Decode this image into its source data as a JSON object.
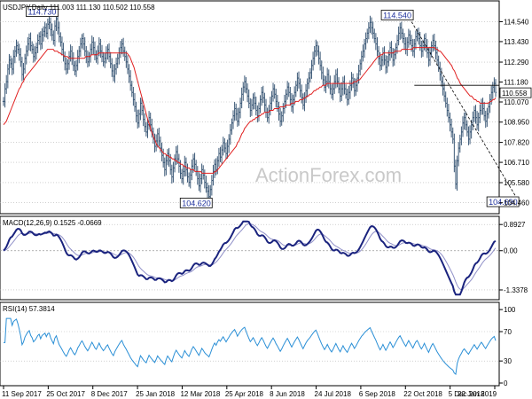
{
  "chart_data": {
    "type": "line",
    "symbol_label": "USDJPY,Daily",
    "ohlc_label": "111.003 111.130 110.502 110.558",
    "watermark": "ActionForex.com",
    "x_labels": [
      "11 Sep 2017",
      "25 Oct 2017",
      "8 Dec 2017",
      "25 Jan 2018",
      "12 Mar 2018",
      "25 Apr 2018",
      "8 Jun 2018",
      "24 Jul 2018",
      "6 Sep 2018",
      "22 Oct 2018",
      "5 Dec 2018",
      "22 Jan 2019"
    ],
    "price": {
      "ylim": [
        104.0,
        115.45
      ],
      "ticks": [
        "114.540",
        "113.430",
        "112.290",
        "111.180",
        "110.070",
        "108.950",
        "107.820",
        "106.710",
        "105.580",
        "104.460"
      ],
      "last_value": "110.558",
      "last_value_y": 110.558,
      "horizontal_line": 111.0,
      "annotations": [
        {
          "label": "114.730",
          "index": 37,
          "value": 114.73
        },
        {
          "label": "104.620",
          "index": 145,
          "value": 104.62
        },
        {
          "label": "114.540",
          "index": 286,
          "value": 114.54
        },
        {
          "label": "104.690",
          "index": 360,
          "value": 104.69
        }
      ],
      "series_close": [
        110.1,
        110.8,
        111.2,
        111.9,
        112.4,
        112.2,
        111.9,
        112.6,
        112.9,
        113.2,
        113.0,
        112.7,
        112.3,
        111.6,
        111.9,
        112.5,
        112.9,
        113.3,
        113.6,
        113.2,
        113.0,
        112.6,
        112.8,
        113.1,
        113.5,
        113.7,
        113.3,
        113.8,
        114.0,
        114.2,
        113.9,
        114.4,
        114.5,
        114.1,
        113.8,
        113.5,
        114.3,
        114.7,
        114.2,
        113.7,
        113.4,
        113.0,
        112.6,
        112.2,
        111.9,
        112.2,
        112.6,
        112.9,
        112.5,
        112.1,
        111.8,
        112.1,
        112.6,
        112.9,
        113.3,
        113.6,
        113.3,
        112.9,
        112.6,
        112.3,
        112.6,
        113.0,
        113.4,
        113.1,
        112.7,
        112.5,
        112.9,
        113.3,
        112.9,
        112.6,
        112.3,
        112.5,
        112.8,
        113.0,
        112.6,
        112.2,
        111.8,
        111.5,
        111.9,
        112.2,
        112.5,
        112.8,
        113.1,
        113.3,
        112.9,
        112.6,
        112.3,
        111.9,
        111.5,
        111.0,
        110.6,
        110.2,
        109.8,
        109.3,
        108.9,
        109.4,
        110.0,
        109.6,
        109.1,
        108.7,
        108.4,
        108.8,
        109.2,
        108.8,
        108.4,
        108.0,
        107.6,
        107.9,
        108.3,
        107.9,
        107.5,
        107.1,
        106.7,
        106.3,
        106.8,
        107.2,
        106.8,
        106.3,
        105.9,
        106.4,
        106.9,
        107.3,
        106.9,
        106.5,
        106.1,
        105.8,
        106.2,
        106.7,
        106.3,
        105.9,
        105.6,
        106.0,
        106.5,
        106.9,
        106.6,
        106.2,
        105.8,
        105.4,
        105.8,
        106.3,
        106.0,
        105.6,
        105.3,
        105.1,
        104.8,
        105.2,
        105.7,
        106.2,
        106.6,
        106.3,
        106.8,
        107.2,
        107.0,
        107.4,
        107.8,
        107.5,
        107.2,
        107.6,
        108.0,
        108.5,
        108.9,
        109.3,
        109.7,
        109.4,
        109.0,
        109.5,
        110.0,
        110.5,
        110.9,
        111.2,
        110.8,
        110.4,
        110.0,
        109.6,
        109.9,
        110.3,
        110.0,
        109.6,
        109.3,
        109.7,
        110.2,
        110.6,
        110.3,
        109.9,
        109.5,
        109.2,
        109.6,
        110.0,
        110.4,
        110.8,
        110.5,
        110.1,
        109.8,
        109.4,
        109.0,
        109.3,
        109.7,
        110.1,
        110.5,
        110.9,
        110.6,
        110.2,
        109.8,
        110.2,
        110.6,
        111.0,
        111.4,
        111.1,
        110.7,
        110.3,
        109.9,
        110.3,
        110.7,
        111.1,
        111.4,
        111.7,
        112.1,
        112.5,
        112.9,
        113.2,
        112.9,
        112.5,
        112.1,
        111.7,
        111.3,
        110.9,
        111.2,
        111.6,
        111.2,
        110.8,
        110.5,
        110.8,
        111.2,
        111.6,
        111.2,
        110.8,
        110.4,
        110.8,
        111.2,
        110.8,
        110.5,
        110.2,
        110.6,
        111.0,
        111.4,
        111.1,
        110.7,
        111.0,
        111.4,
        111.8,
        112.2,
        112.6,
        112.9,
        113.3,
        113.6,
        113.9,
        114.2,
        114.5,
        114.2,
        113.9,
        113.6,
        113.3,
        112.9,
        112.5,
        112.1,
        112.4,
        112.8,
        112.4,
        112.0,
        112.3,
        112.7,
        113.1,
        112.8,
        112.4,
        112.7,
        113.1,
        113.5,
        113.9,
        114.2,
        113.9,
        113.6,
        113.3,
        113.0,
        113.4,
        113.8,
        113.5,
        113.2,
        112.9,
        113.3,
        113.7,
        113.9,
        113.6,
        113.2,
        112.9,
        113.2,
        113.6,
        113.2,
        112.8,
        112.4,
        112.8,
        113.2,
        113.5,
        113.2,
        112.8,
        112.4,
        112.0,
        111.6,
        111.2,
        110.8,
        110.4,
        110.0,
        109.6,
        109.2,
        108.8,
        108.4,
        108.0,
        106.5,
        105.5,
        106.8,
        107.5,
        108.0,
        108.4,
        108.9,
        109.2,
        108.8,
        108.4,
        108.0,
        108.4,
        108.8,
        109.2,
        109.6,
        109.2,
        108.8,
        109.2,
        109.6,
        110.0,
        109.7,
        109.3,
        109.0,
        109.4,
        109.8,
        110.2,
        110.6,
        110.9,
        111.1,
        110.6
      ],
      "ma": [
        108.8,
        108.9,
        109.0,
        109.2,
        109.4,
        109.6,
        109.8,
        110.0,
        110.2,
        110.4,
        110.6,
        110.8,
        110.9,
        111.1,
        111.2,
        111.4,
        111.5,
        111.6,
        111.7,
        111.8,
        111.9,
        112.0,
        112.1,
        112.2,
        112.3,
        112.4,
        112.5,
        112.6,
        112.7,
        112.8,
        112.9,
        113.0,
        113.0,
        113.0,
        113.0,
        113.0,
        112.9,
        112.9,
        112.9,
        112.8,
        112.8,
        112.7,
        112.7,
        112.6,
        112.6,
        112.6,
        112.5,
        112.5,
        112.5,
        112.5,
        112.5,
        112.5,
        112.5,
        112.5,
        112.5,
        112.5,
        112.5,
        112.5,
        112.6,
        112.6,
        112.6,
        112.6,
        112.7,
        112.7,
        112.7,
        112.7,
        112.7,
        112.8,
        112.8,
        112.8,
        112.8,
        112.8,
        112.8,
        112.8,
        112.8,
        112.8,
        112.8,
        112.8,
        112.8,
        112.8,
        112.8,
        112.8,
        112.8,
        112.8,
        112.8,
        112.8,
        112.8,
        112.8,
        112.7,
        112.6,
        112.4,
        112.2,
        112.0,
        111.7,
        111.4,
        111.1,
        110.8,
        110.5,
        110.2,
        109.9,
        109.6,
        109.3,
        109.0,
        108.8,
        108.5,
        108.3,
        108.1,
        107.9,
        107.7,
        107.6,
        107.5,
        107.4,
        107.3,
        107.2,
        107.2,
        107.1,
        107.1,
        107.0,
        107.0,
        106.9,
        106.9,
        106.8,
        106.8,
        106.7,
        106.7,
        106.6,
        106.6,
        106.5,
        106.5,
        106.4,
        106.4,
        106.4,
        106.3,
        106.3,
        106.3,
        106.2,
        106.2,
        106.2,
        106.2,
        106.2,
        106.1,
        106.1,
        106.1,
        106.1,
        106.1,
        106.1,
        106.1,
        106.1,
        106.1,
        106.2,
        106.2,
        106.3,
        106.4,
        106.5,
        106.6,
        106.7,
        106.8,
        106.9,
        107.0,
        107.1,
        107.2,
        107.3,
        107.4,
        107.5,
        107.6,
        107.8,
        107.9,
        108.1,
        108.3,
        108.4,
        108.6,
        108.7,
        108.8,
        108.9,
        109.0,
        109.0,
        109.1,
        109.1,
        109.2,
        109.2,
        109.3,
        109.3,
        109.4,
        109.4,
        109.5,
        109.5,
        109.5,
        109.5,
        109.6,
        109.6,
        109.6,
        109.7,
        109.7,
        109.7,
        109.7,
        109.8,
        109.8,
        109.8,
        109.8,
        109.9,
        109.9,
        109.9,
        109.9,
        110.0,
        110.0,
        110.0,
        110.1,
        110.1,
        110.1,
        110.2,
        110.2,
        110.2,
        110.3,
        110.3,
        110.4,
        110.4,
        110.5,
        110.5,
        110.6,
        110.7,
        110.7,
        110.8,
        110.8,
        110.9,
        110.9,
        111.0,
        111.0,
        111.0,
        111.1,
        111.1,
        111.1,
        111.1,
        111.1,
        111.1,
        111.1,
        111.1,
        111.1,
        111.1,
        111.1,
        111.1,
        111.1,
        111.1,
        111.1,
        111.1,
        111.1,
        111.1,
        111.1,
        111.2,
        111.2,
        111.2,
        111.3,
        111.3,
        111.4,
        111.5,
        111.6,
        111.7,
        111.8,
        111.9,
        112.0,
        112.1,
        112.2,
        112.3,
        112.4,
        112.5,
        112.6,
        112.6,
        112.7,
        112.7,
        112.8,
        112.8,
        112.8,
        112.8,
        112.8,
        112.8,
        112.8,
        112.8,
        112.9,
        112.9,
        112.9,
        112.9,
        112.9,
        113.0,
        113.0,
        113.0,
        113.0,
        113.0,
        113.0,
        113.0,
        113.0,
        113.1,
        113.1,
        113.1,
        113.1,
        113.1,
        113.1,
        113.1,
        113.1,
        113.1,
        113.1,
        113.1,
        113.1,
        113.1,
        113.1,
        113.1,
        113.1,
        113.0,
        113.0,
        112.9,
        112.9,
        112.8,
        112.7,
        112.6,
        112.5,
        112.4,
        112.3,
        112.2,
        112.1,
        111.9,
        111.8,
        111.6,
        111.4,
        111.3,
        111.1,
        111.0,
        110.9,
        110.8,
        110.7,
        110.6,
        110.5,
        110.4,
        110.4,
        110.3,
        110.2,
        110.2,
        110.1,
        110.1,
        110.0,
        110.0,
        110.0,
        110.0,
        110.0,
        110.0,
        110.0,
        110.1,
        110.1,
        110.2,
        110.2,
        110.3
      ]
    },
    "macd": {
      "label": "MACD(12,26,9) 0.1525 -0.0669",
      "ylim": [
        -1.55,
        1.05
      ],
      "ticks": [
        "0.8927",
        "0.00",
        "-1.3378"
      ]
    },
    "rsi": {
      "label": "RSI(14) 57.3814",
      "ylim": [
        0,
        105
      ],
      "ticks": [
        "100",
        "70",
        "30",
        "0"
      ]
    }
  }
}
